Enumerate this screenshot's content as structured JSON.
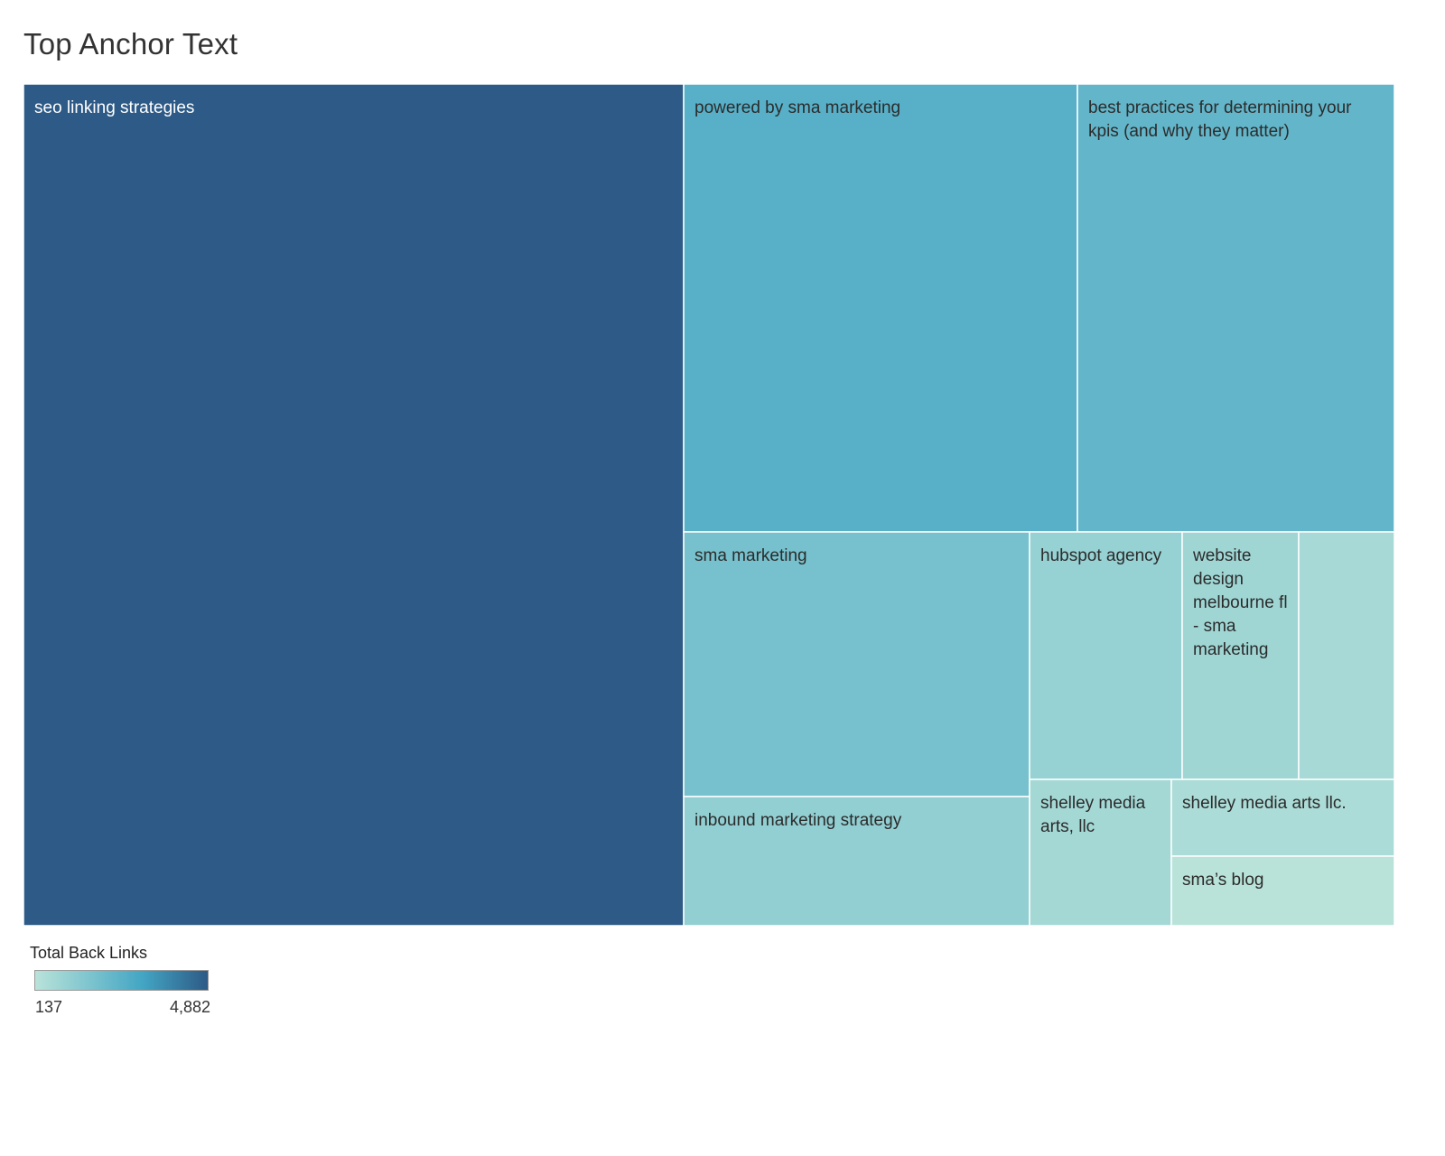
{
  "title": "Top Anchor Text",
  "chart_data": {
    "type": "treemap",
    "title": "Top Anchor Text",
    "color_measure": "Total Back Links",
    "color_range": [
      137,
      4882
    ],
    "colors": {
      "low": "#b9e3d9",
      "mid": "#43a6c4",
      "high": "#2d5a86"
    },
    "items": [
      {
        "label": "seo linking strategies",
        "value": 4882
      },
      {
        "label": "powered by sma marketing",
        "value": 1390
      },
      {
        "label": "best practices for determining your kpis (and why they matter)",
        "value": 1110
      },
      {
        "label": "sma marketing",
        "value": 720
      },
      {
        "label": "hubspot agency",
        "value": 300
      },
      {
        "label": "website design melbourne fl - sma marketing",
        "value": 225
      },
      {
        "label": "",
        "value": 180
      },
      {
        "label": "inbound marketing strategy",
        "value": 340
      },
      {
        "label": "shelley media arts, llc",
        "value": 195
      },
      {
        "label": "shelley media arts llc.",
        "value": 160
      },
      {
        "label": "sma’s blog",
        "value": 137
      }
    ]
  },
  "legend": {
    "title": "Total Back Links",
    "min_label": "137",
    "max_label": "4,882"
  }
}
